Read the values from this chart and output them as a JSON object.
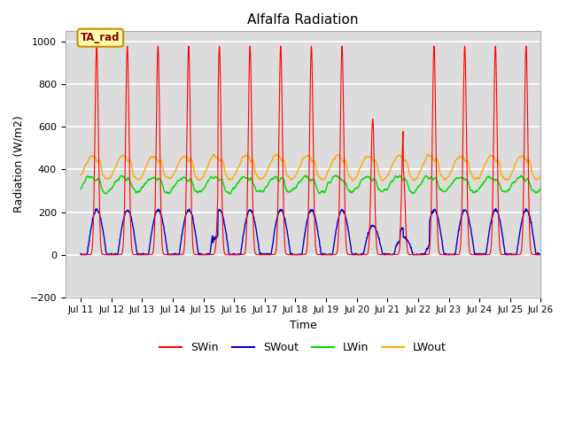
{
  "title": "Alfalfa Radiation",
  "xlabel": "Time",
  "ylabel": "Radiation (W/m2)",
  "ylim": [
    -200,
    1050
  ],
  "xlim_start": 10.5,
  "xlim_end": 26.0,
  "background_color": "#dcdcdc",
  "grid_color": "white",
  "series_colors": {
    "SWin": "#ff0000",
    "SWout": "#0000cc",
    "LWin": "#00dd00",
    "LWout": "#ffaa00"
  },
  "annotation_label": "TA_rad",
  "annotation_bg": "#ffffaa",
  "annotation_border": "#cc8800",
  "x_tick_labels": [
    "Jul 11",
    "Jul 12",
    "Jul 13",
    "Jul 14",
    "Jul 15",
    "Jul 16",
    "Jul 17",
    "Jul 18",
    "Jul 19",
    "Jul 20",
    "Jul 21",
    "Jul 22",
    "Jul 23",
    "Jul 24",
    "Jul 25",
    "Jul 26"
  ],
  "x_tick_positions": [
    11,
    12,
    13,
    14,
    15,
    16,
    17,
    18,
    19,
    20,
    21,
    22,
    23,
    24,
    25,
    26
  ],
  "y_ticks": [
    -200,
    0,
    200,
    400,
    600,
    800,
    1000
  ]
}
